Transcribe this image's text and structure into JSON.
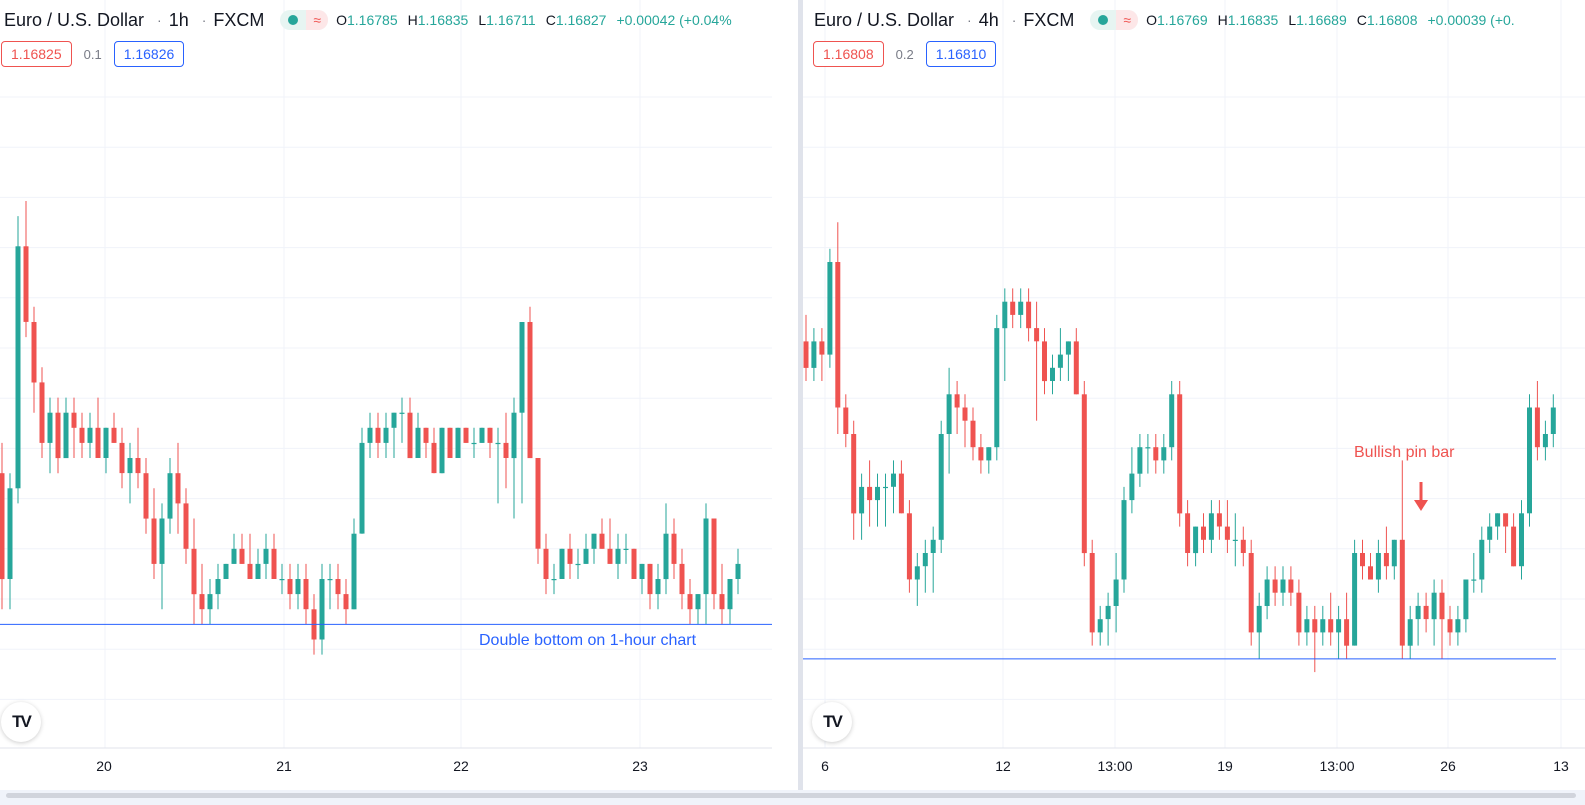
{
  "colors": {
    "up": "#26a69a",
    "down": "#ef5350",
    "level": "#2962ff",
    "grid": "#f0f3fa"
  },
  "panels": [
    {
      "id": "left",
      "symbol": "Euro / U.S. Dollar",
      "interval": "1h",
      "exchange": "FXCM",
      "ohlc": {
        "open": "1.16785",
        "high": "1.16835",
        "low": "1.16711",
        "close": "1.16827",
        "change": "+0.00042 (+0.04%"
      },
      "bid": "1.16825",
      "spread": "0.1",
      "ask": "1.16826",
      "x_axis_labels": [
        "20",
        "21",
        "22",
        "23"
      ],
      "annotation": "Double bottom on 1-hour chart"
    },
    {
      "id": "right",
      "symbol": "Euro / U.S. Dollar",
      "interval": "4h",
      "exchange": "FXCM",
      "ohlc": {
        "open": "1.16769",
        "high": "1.16835",
        "low": "1.16689",
        "close": "1.16808",
        "change": "+0.00039 (+0."
      },
      "bid": "1.16808",
      "spread": "0.2",
      "ask": "1.16810",
      "x_axis_labels": [
        "6",
        "12",
        "13:00",
        "19",
        "13:00",
        "26",
        "13"
      ],
      "annotation": "Bullish pin bar"
    }
  ],
  "chart_data": [
    {
      "type": "candlestick",
      "symbol": "Euro / U.S. Dollar",
      "interval": "1h",
      "x_tick_labels": [
        "20",
        "21",
        "22",
        "23"
      ],
      "horizontal_level": {
        "price": 1.1669,
        "label": "Double bottom on 1-hour chart"
      },
      "y_range": [
        1.1664,
        1.1705
      ],
      "ohlc": [
        [
          1.1678,
          1.168,
          1.1674,
          1.1679
        ],
        [
          1.1679,
          1.1681,
          1.167,
          1.1672
        ],
        [
          1.1672,
          1.1679,
          1.167,
          1.1678
        ],
        [
          1.1678,
          1.1696,
          1.1677,
          1.1694
        ],
        [
          1.1694,
          1.1697,
          1.1688,
          1.1689
        ],
        [
          1.1689,
          1.169,
          1.1683,
          1.1685
        ],
        [
          1.1685,
          1.1686,
          1.168,
          1.1681
        ],
        [
          1.1681,
          1.1684,
          1.1679,
          1.1683
        ],
        [
          1.1683,
          1.1684,
          1.1679,
          1.168
        ],
        [
          1.168,
          1.1684,
          1.168,
          1.1683
        ],
        [
          1.1683,
          1.1684,
          1.168,
          1.1682
        ],
        [
          1.1682,
          1.1683,
          1.168,
          1.1681
        ],
        [
          1.1681,
          1.1683,
          1.168,
          1.1682
        ],
        [
          1.1682,
          1.1684,
          1.168,
          1.168
        ],
        [
          1.168,
          1.1682,
          1.1679,
          1.1682
        ],
        [
          1.1682,
          1.1683,
          1.1681,
          1.1681
        ],
        [
          1.1681,
          1.1682,
          1.1678,
          1.1679
        ],
        [
          1.1679,
          1.1681,
          1.1677,
          1.168
        ],
        [
          1.168,
          1.1682,
          1.1678,
          1.1679
        ],
        [
          1.1679,
          1.168,
          1.1675,
          1.1676
        ],
        [
          1.1676,
          1.1678,
          1.1672,
          1.1673
        ],
        [
          1.1673,
          1.1677,
          1.167,
          1.1676
        ],
        [
          1.1676,
          1.168,
          1.1675,
          1.1679
        ],
        [
          1.1679,
          1.1681,
          1.1675,
          1.1677
        ],
        [
          1.1677,
          1.1678,
          1.1673,
          1.1674
        ],
        [
          1.1674,
          1.1676,
          1.1669,
          1.1671
        ],
        [
          1.1671,
          1.1673,
          1.1669,
          1.167
        ],
        [
          1.167,
          1.1672,
          1.1669,
          1.1671
        ],
        [
          1.1671,
          1.1673,
          1.167,
          1.1672
        ],
        [
          1.1672,
          1.1673,
          1.1672,
          1.1673
        ],
        [
          1.1673,
          1.1675,
          1.1673,
          1.1674
        ],
        [
          1.1674,
          1.1675,
          1.1673,
          1.1673
        ],
        [
          1.1673,
          1.1675,
          1.1672,
          1.1672
        ],
        [
          1.1672,
          1.1674,
          1.1672,
          1.1673
        ],
        [
          1.1673,
          1.1675,
          1.1672,
          1.1674
        ],
        [
          1.1674,
          1.1675,
          1.1672,
          1.1672
        ],
        [
          1.1672,
          1.1673,
          1.1671,
          1.1672
        ],
        [
          1.1672,
          1.1673,
          1.167,
          1.1671
        ],
        [
          1.1671,
          1.1673,
          1.167,
          1.1672
        ],
        [
          1.1672,
          1.1673,
          1.1669,
          1.167
        ],
        [
          1.167,
          1.1671,
          1.1667,
          1.1668
        ],
        [
          1.1668,
          1.1673,
          1.1667,
          1.1672
        ],
        [
          1.1672,
          1.1673,
          1.167,
          1.1672
        ],
        [
          1.1672,
          1.1673,
          1.167,
          1.1671
        ],
        [
          1.1671,
          1.1672,
          1.1669,
          1.167
        ],
        [
          1.167,
          1.1676,
          1.167,
          1.1675
        ],
        [
          1.1675,
          1.1682,
          1.1675,
          1.1681
        ],
        [
          1.1681,
          1.1683,
          1.168,
          1.1682
        ],
        [
          1.1682,
          1.1683,
          1.168,
          1.1681
        ],
        [
          1.1681,
          1.1683,
          1.168,
          1.1682
        ],
        [
          1.1682,
          1.1683,
          1.168,
          1.1683
        ],
        [
          1.1683,
          1.1684,
          1.1681,
          1.1683
        ],
        [
          1.1683,
          1.1684,
          1.168,
          1.168
        ],
        [
          1.168,
          1.1683,
          1.168,
          1.1682
        ],
        [
          1.1682,
          1.1682,
          1.168,
          1.1681
        ],
        [
          1.1681,
          1.1682,
          1.1679,
          1.1679
        ],
        [
          1.1679,
          1.1682,
          1.1679,
          1.1682
        ],
        [
          1.1682,
          1.1682,
          1.168,
          1.168
        ],
        [
          1.168,
          1.1682,
          1.168,
          1.1682
        ],
        [
          1.1682,
          1.1682,
          1.1681,
          1.1681
        ],
        [
          1.1681,
          1.1682,
          1.168,
          1.1681
        ],
        [
          1.1681,
          1.1682,
          1.1681,
          1.1682
        ],
        [
          1.1682,
          1.1682,
          1.168,
          1.1681
        ],
        [
          1.1681,
          1.1682,
          1.1677,
          1.1681
        ],
        [
          1.1681,
          1.1683,
          1.1678,
          1.168
        ],
        [
          1.168,
          1.1684,
          1.1676,
          1.1683
        ],
        [
          1.1683,
          1.1689,
          1.1677,
          1.1689
        ],
        [
          1.1689,
          1.169,
          1.168,
          1.168
        ],
        [
          1.168,
          1.168,
          1.1673,
          1.1674
        ],
        [
          1.1674,
          1.1675,
          1.1671,
          1.1672
        ],
        [
          1.1672,
          1.1673,
          1.1671,
          1.1672
        ],
        [
          1.1672,
          1.1674,
          1.1672,
          1.1674
        ],
        [
          1.1674,
          1.1675,
          1.1672,
          1.1673
        ],
        [
          1.1673,
          1.1674,
          1.1672,
          1.1673
        ],
        [
          1.1673,
          1.1675,
          1.1673,
          1.1674
        ],
        [
          1.1674,
          1.1675,
          1.1673,
          1.1675
        ],
        [
          1.1675,
          1.1676,
          1.1674,
          1.1674
        ],
        [
          1.1674,
          1.1676,
          1.1673,
          1.1673
        ],
        [
          1.1673,
          1.1675,
          1.1672,
          1.1674
        ],
        [
          1.1674,
          1.1675,
          1.1673,
          1.1674
        ],
        [
          1.1674,
          1.1674,
          1.1672,
          1.1672
        ],
        [
          1.1672,
          1.1673,
          1.1671,
          1.1673
        ],
        [
          1.1673,
          1.1673,
          1.167,
          1.1671
        ],
        [
          1.1671,
          1.1673,
          1.167,
          1.1672
        ],
        [
          1.1672,
          1.1677,
          1.1671,
          1.1675
        ],
        [
          1.1675,
          1.1676,
          1.1672,
          1.1673
        ],
        [
          1.1673,
          1.1674,
          1.167,
          1.1671
        ],
        [
          1.1671,
          1.1672,
          1.1669,
          1.167
        ],
        [
          1.167,
          1.1671,
          1.1669,
          1.1671
        ],
        [
          1.1671,
          1.1677,
          1.1669,
          1.1676
        ],
        [
          1.1676,
          1.1676,
          1.167,
          1.1671
        ],
        [
          1.1671,
          1.1673,
          1.1669,
          1.167
        ],
        [
          1.167,
          1.1672,
          1.1669,
          1.1672
        ],
        [
          1.1672,
          1.1674,
          1.1671,
          1.1673
        ]
      ]
    },
    {
      "type": "candlestick",
      "symbol": "Euro / U.S. Dollar",
      "interval": "4h",
      "x_tick_labels": [
        "6",
        "12",
        "13:00",
        "19",
        "13:00",
        "26",
        "13"
      ],
      "horizontal_level": {
        "price": 1.1669
      },
      "annotation": {
        "text": "Bullish pin bar",
        "marker": "down-arrow"
      },
      "y_range": [
        1.1664,
        1.1712
      ],
      "ohlc": [
        [
          1.1693,
          1.1695,
          1.169,
          1.1691
        ],
        [
          1.1691,
          1.1694,
          1.169,
          1.1693
        ],
        [
          1.1693,
          1.1694,
          1.169,
          1.1692
        ],
        [
          1.1692,
          1.17,
          1.1691,
          1.1699
        ],
        [
          1.1699,
          1.1702,
          1.1686,
          1.1688
        ],
        [
          1.1688,
          1.1689,
          1.1685,
          1.1686
        ],
        [
          1.1686,
          1.1687,
          1.1678,
          1.168
        ],
        [
          1.168,
          1.1683,
          1.1678,
          1.1682
        ],
        [
          1.1682,
          1.1684,
          1.1679,
          1.1681
        ],
        [
          1.1681,
          1.1683,
          1.1679,
          1.1682
        ],
        [
          1.1682,
          1.1683,
          1.1679,
          1.1682
        ],
        [
          1.1682,
          1.1684,
          1.168,
          1.1683
        ],
        [
          1.1683,
          1.1684,
          1.168,
          1.168
        ],
        [
          1.168,
          1.1681,
          1.1674,
          1.1675
        ],
        [
          1.1675,
          1.1677,
          1.1673,
          1.1676
        ],
        [
          1.1676,
          1.1678,
          1.1674,
          1.1677
        ],
        [
          1.1677,
          1.1679,
          1.1674,
          1.1678
        ],
        [
          1.1678,
          1.1687,
          1.1677,
          1.1686
        ],
        [
          1.1686,
          1.1691,
          1.1683,
          1.1689
        ],
        [
          1.1689,
          1.169,
          1.1686,
          1.1688
        ],
        [
          1.1688,
          1.1689,
          1.1685,
          1.1687
        ],
        [
          1.1687,
          1.1688,
          1.1684,
          1.1685
        ],
        [
          1.1685,
          1.1686,
          1.1683,
          1.1684
        ],
        [
          1.1684,
          1.1685,
          1.1683,
          1.1685
        ],
        [
          1.1685,
          1.1695,
          1.1684,
          1.1694
        ],
        [
          1.1694,
          1.1697,
          1.169,
          1.1696
        ],
        [
          1.1696,
          1.1697,
          1.1694,
          1.1695
        ],
        [
          1.1695,
          1.1697,
          1.1694,
          1.1696
        ],
        [
          1.1696,
          1.1697,
          1.1693,
          1.1694
        ],
        [
          1.1694,
          1.1696,
          1.1687,
          1.1693
        ],
        [
          1.1693,
          1.1694,
          1.1689,
          1.169
        ],
        [
          1.169,
          1.1692,
          1.1689,
          1.1691
        ],
        [
          1.1691,
          1.1694,
          1.169,
          1.1692
        ],
        [
          1.1692,
          1.1693,
          1.169,
          1.1693
        ],
        [
          1.1693,
          1.1694,
          1.1689,
          1.1689
        ],
        [
          1.1689,
          1.169,
          1.1676,
          1.1677
        ],
        [
          1.1677,
          1.1678,
          1.167,
          1.1671
        ],
        [
          1.1671,
          1.1673,
          1.167,
          1.1672
        ],
        [
          1.1672,
          1.1674,
          1.167,
          1.1673
        ],
        [
          1.1673,
          1.1677,
          1.1671,
          1.1675
        ],
        [
          1.1675,
          1.1682,
          1.1674,
          1.1681
        ],
        [
          1.1681,
          1.1685,
          1.168,
          1.1683
        ],
        [
          1.1683,
          1.1686,
          1.1682,
          1.1685
        ],
        [
          1.1685,
          1.1686,
          1.1683,
          1.1685
        ],
        [
          1.1685,
          1.1686,
          1.1683,
          1.1684
        ],
        [
          1.1684,
          1.1686,
          1.1683,
          1.1685
        ],
        [
          1.1685,
          1.169,
          1.1684,
          1.1689
        ],
        [
          1.1689,
          1.169,
          1.1679,
          1.168
        ],
        [
          1.168,
          1.1681,
          1.1676,
          1.1677
        ],
        [
          1.1677,
          1.1679,
          1.1676,
          1.1679
        ],
        [
          1.1679,
          1.168,
          1.1677,
          1.1678
        ],
        [
          1.1678,
          1.1681,
          1.1677,
          1.168
        ],
        [
          1.168,
          1.1681,
          1.1678,
          1.1679
        ],
        [
          1.1679,
          1.1681,
          1.1677,
          1.1678
        ],
        [
          1.1678,
          1.168,
          1.1676,
          1.1678
        ],
        [
          1.1678,
          1.1679,
          1.1676,
          1.1677
        ],
        [
          1.1677,
          1.1678,
          1.167,
          1.1671
        ],
        [
          1.1671,
          1.1674,
          1.1669,
          1.1673
        ],
        [
          1.1673,
          1.1676,
          1.1672,
          1.1675
        ],
        [
          1.1675,
          1.1676,
          1.1673,
          1.1674
        ],
        [
          1.1674,
          1.1676,
          1.1673,
          1.1675
        ],
        [
          1.1675,
          1.1676,
          1.1673,
          1.1674
        ],
        [
          1.1674,
          1.1675,
          1.167,
          1.1671
        ],
        [
          1.1671,
          1.1673,
          1.167,
          1.1672
        ],
        [
          1.1672,
          1.1673,
          1.1668,
          1.1671
        ],
        [
          1.1671,
          1.1673,
          1.167,
          1.1672
        ],
        [
          1.1672,
          1.1674,
          1.167,
          1.1671
        ],
        [
          1.1671,
          1.1673,
          1.1669,
          1.1672
        ],
        [
          1.1672,
          1.1674,
          1.1669,
          1.167
        ],
        [
          1.167,
          1.1678,
          1.167,
          1.1677
        ],
        [
          1.1677,
          1.1678,
          1.1675,
          1.1676
        ],
        [
          1.1676,
          1.1677,
          1.1675,
          1.1675
        ],
        [
          1.1675,
          1.1678,
          1.1674,
          1.1677
        ],
        [
          1.1677,
          1.1679,
          1.1675,
          1.1676
        ],
        [
          1.1676,
          1.1678,
          1.1675,
          1.1678
        ],
        [
          1.1678,
          1.1684,
          1.1669,
          1.167
        ],
        [
          1.167,
          1.1673,
          1.1669,
          1.1672
        ],
        [
          1.1672,
          1.1674,
          1.167,
          1.1673
        ],
        [
          1.1673,
          1.1674,
          1.1671,
          1.1672
        ],
        [
          1.1672,
          1.1675,
          1.167,
          1.1674
        ],
        [
          1.1674,
          1.1675,
          1.1669,
          1.1672
        ],
        [
          1.1672,
          1.1673,
          1.167,
          1.1671
        ],
        [
          1.1671,
          1.1673,
          1.167,
          1.1672
        ],
        [
          1.1672,
          1.1675,
          1.1671,
          1.1675
        ],
        [
          1.1675,
          1.1677,
          1.1674,
          1.1675
        ],
        [
          1.1675,
          1.1679,
          1.1674,
          1.1678
        ],
        [
          1.1678,
          1.168,
          1.1677,
          1.1679
        ],
        [
          1.1679,
          1.168,
          1.1678,
          1.168
        ],
        [
          1.168,
          1.168,
          1.1677,
          1.1679
        ],
        [
          1.1679,
          1.168,
          1.1676,
          1.1676
        ],
        [
          1.1676,
          1.1681,
          1.1675,
          1.168
        ],
        [
          1.168,
          1.1689,
          1.1679,
          1.1688
        ],
        [
          1.1688,
          1.169,
          1.1684,
          1.1685
        ],
        [
          1.1685,
          1.1687,
          1.1684,
          1.1686
        ],
        [
          1.1686,
          1.1689,
          1.1685,
          1.1688
        ]
      ]
    }
  ]
}
